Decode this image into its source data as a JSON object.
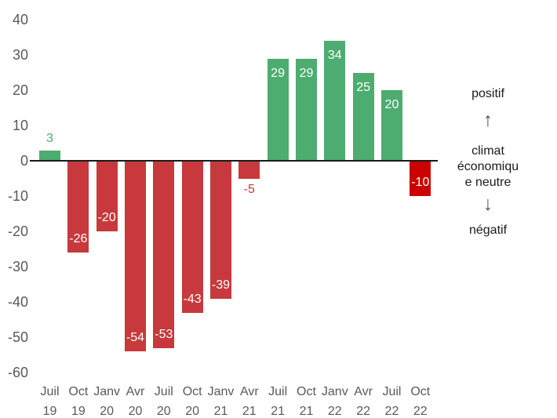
{
  "chart_data": {
    "type": "bar",
    "title": "",
    "xlabel": "",
    "ylabel": "",
    "categories": [
      "Juil 19",
      "Oct 19",
      "Janv 20",
      "Avr 20",
      "Juil 20",
      "Oct 20",
      "Janv 21",
      "Avr 21",
      "Juil 21",
      "Oct 21",
      "Janv 22",
      "Avr 22",
      "Juil 22",
      "Oct 22"
    ],
    "values": [
      3,
      -26,
      -20,
      -54,
      -53,
      -43,
      -39,
      -5,
      29,
      29,
      34,
      25,
      20,
      -10
    ],
    "yticks": [
      40,
      30,
      20,
      10,
      0,
      -10,
      -20,
      -30,
      -40,
      -50,
      -60
    ],
    "ylim": [
      -60,
      40
    ],
    "grid": false,
    "highlight_index": 13,
    "colors": {
      "positive": "#4dac6f",
      "negative": "#c7393c",
      "highlight": "#cc0200",
      "axis_text": "#595959",
      "axis_line": "#1a1a1a",
      "value_label_inside": "#ffffff"
    }
  },
  "annotation": {
    "positive_label": "positif",
    "up_arrow": "↑",
    "neutral_lines": [
      "climat",
      "économiqu",
      "e neutre"
    ],
    "down_arrow": "↓",
    "negative_label": "négatif"
  }
}
